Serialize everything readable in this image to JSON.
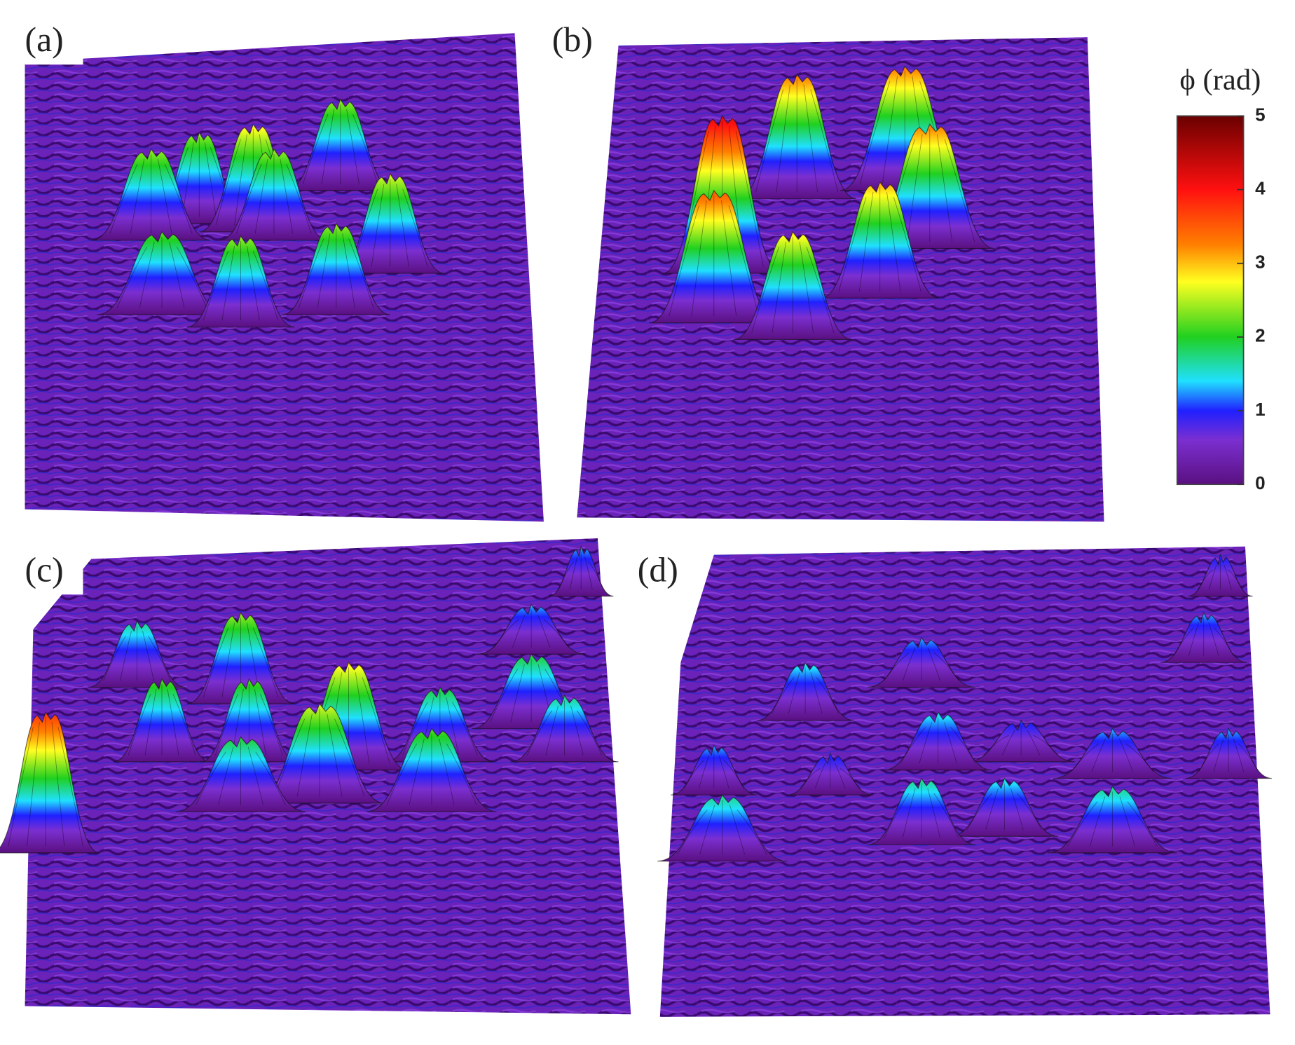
{
  "panels": [
    {
      "label": "(a)"
    },
    {
      "label": "(b)"
    },
    {
      "label": "(c)"
    },
    {
      "label": "(d)"
    }
  ],
  "colorbar": {
    "title": "ϕ (rad)",
    "range": [
      0,
      5
    ],
    "ticks": [
      0,
      1,
      2,
      3,
      4,
      5
    ]
  }
}
